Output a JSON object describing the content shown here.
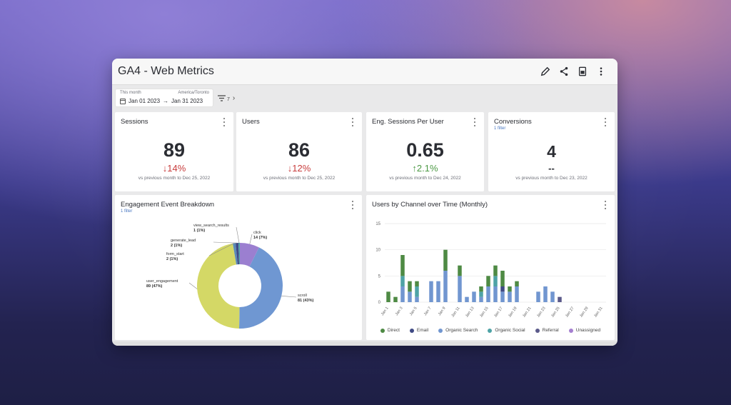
{
  "window": {
    "title": "GA4 - Web Metrics"
  },
  "toolbar": {
    "icons": [
      "pencil-icon",
      "share-icon",
      "export-icon",
      "more-vertical-icon"
    ]
  },
  "filter": {
    "period_label": "This month",
    "timezone": "America/Toronto",
    "start": "Jan 01 2023",
    "end": "Jan 31 2023",
    "filter_count": "7"
  },
  "kpis": [
    {
      "title": "Sessions",
      "subtitle": "",
      "value": "89",
      "delta": "↓14%",
      "delta_dir": "neg",
      "note": "vs previous month to Dec 25, 2022"
    },
    {
      "title": "Users",
      "subtitle": "",
      "value": "86",
      "delta": "↓12%",
      "delta_dir": "neg",
      "note": "vs previous month to Dec 25, 2022"
    },
    {
      "title": "Eng. Sessions Per User",
      "subtitle": "",
      "value": "0.65",
      "delta": "↑2.1%",
      "delta_dir": "pos",
      "note": "vs previous month to Dec 24, 2022"
    },
    {
      "title": "Conversions",
      "subtitle": "1 filter",
      "value": "4",
      "delta": "--",
      "delta_dir": "neu",
      "note": "vs previous month to Dec 23, 2022"
    }
  ],
  "pie_panel": {
    "title": "Engagement Event Breakdown",
    "subtitle": "1 filter"
  },
  "bar_panel": {
    "title": "Users by Channel over Time (Monthly)"
  },
  "chart_data": [
    {
      "type": "pie",
      "title": "Engagement Event Breakdown",
      "donut": true,
      "slices": [
        {
          "name": "click",
          "value": 14,
          "label": "14 (7%)",
          "color": "#9b7fd0"
        },
        {
          "name": "scroll",
          "value": 81,
          "label": "81 (43%)",
          "color": "#6f97d2"
        },
        {
          "name": "user_engagement",
          "value": 89,
          "label": "89 (47%)",
          "color": "#d4d866"
        },
        {
          "name": "form_start",
          "value": 2,
          "label": "2 (1%)",
          "color": "#5a8ab8"
        },
        {
          "name": "generate_lead",
          "value": 2,
          "label": "2 (1%)",
          "color": "#3e4a86"
        },
        {
          "name": "view_search_results",
          "value": 1,
          "label": "1 (1%)",
          "color": "#4ea3a6"
        }
      ]
    },
    {
      "type": "bar",
      "stacked": true,
      "title": "Users by Channel over Time (Monthly)",
      "ylim": [
        0,
        15
      ],
      "yticks": [
        "0",
        "5",
        "10",
        "15"
      ],
      "xtick_labels": [
        "Jan 1",
        "Jan 3",
        "Jan 5",
        "Jan 7",
        "Jan 9",
        "Jan 11",
        "Jan 13",
        "Jan 15",
        "Jan 17",
        "Jan 19",
        "Jan 21",
        "Jan 23",
        "Jan 25",
        "Jan 27",
        "Jan 29",
        "Jan 31"
      ],
      "categories": [
        "1",
        "2",
        "3",
        "4",
        "5",
        "6",
        "7",
        "8",
        "9",
        "10",
        "11",
        "12",
        "13",
        "14",
        "15",
        "16",
        "17",
        "18",
        "19",
        "20",
        "21",
        "22",
        "23",
        "24",
        "25",
        "26",
        "27",
        "28",
        "29",
        "30",
        "31"
      ],
      "legend_position": "bottom",
      "series": [
        {
          "name": "Direct",
          "color": "#4e8a44",
          "values": [
            2,
            1,
            4,
            2,
            1,
            0,
            0,
            0,
            4,
            0,
            2,
            0,
            0,
            1,
            2,
            2,
            3,
            1,
            1,
            0,
            0,
            0,
            0,
            0,
            0,
            0,
            0,
            0,
            0,
            0,
            0
          ]
        },
        {
          "name": "Email",
          "color": "#3f4a84",
          "values": [
            0,
            0,
            0,
            0,
            0,
            0,
            0,
            0,
            0,
            0,
            0,
            0,
            0,
            0,
            0,
            0,
            1,
            0,
            0,
            0,
            0,
            0,
            0,
            0,
            0,
            0,
            0,
            0,
            0,
            0,
            0
          ]
        },
        {
          "name": "Organic Search",
          "color": "#7196d0",
          "values": [
            0,
            0,
            3,
            2,
            1,
            0,
            4,
            4,
            6,
            0,
            5,
            1,
            2,
            1,
            3,
            3,
            2,
            2,
            3,
            0,
            0,
            2,
            3,
            2,
            0,
            0,
            0,
            0,
            0,
            0,
            0
          ]
        },
        {
          "name": "Organic Social",
          "color": "#4ea3a6",
          "values": [
            0,
            0,
            2,
            0,
            2,
            0,
            0,
            0,
            0,
            0,
            0,
            0,
            0,
            1,
            0,
            2,
            0,
            0,
            0,
            0,
            0,
            0,
            0,
            0,
            0,
            0,
            0,
            0,
            0,
            0,
            0
          ]
        },
        {
          "name": "Referral",
          "color": "#5b5a8a",
          "values": [
            0,
            0,
            0,
            0,
            0,
            0,
            0,
            0,
            0,
            0,
            0,
            0,
            0,
            0,
            0,
            0,
            0,
            0,
            0,
            0,
            0,
            0,
            0,
            0,
            1,
            0,
            0,
            0,
            0,
            0,
            0
          ]
        },
        {
          "name": "Unassigned",
          "color": "#a57fd0",
          "values": [
            0,
            0,
            0,
            0,
            0,
            0,
            0,
            0,
            0,
            0,
            0,
            0,
            0,
            0,
            0,
            0,
            0,
            0,
            0,
            0,
            0,
            0,
            0,
            0,
            0,
            0,
            0,
            0,
            0,
            0,
            0
          ]
        }
      ]
    }
  ]
}
